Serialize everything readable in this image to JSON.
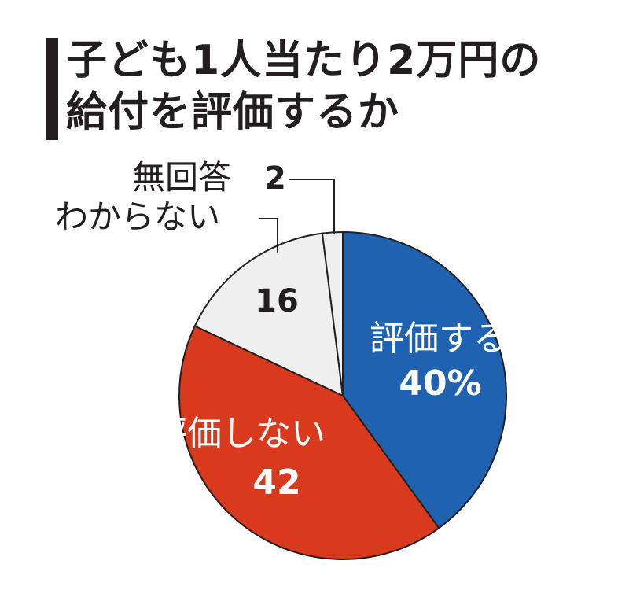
{
  "title_lines": [
    "子ども1人当たり2万円の",
    "給付を評価するか"
  ],
  "chart_data": {
    "type": "pie",
    "slices": [
      {
        "label": "評価する",
        "value": 40,
        "value_text": "40%",
        "color": "#1f63b0"
      },
      {
        "label": "評価しない",
        "value": 42,
        "value_text": "42",
        "color": "#d93a1e"
      },
      {
        "label": "わからない",
        "value": 16,
        "value_text": "16",
        "color": "#efefef"
      },
      {
        "label": "無回答",
        "value": 2,
        "value_text": "2",
        "color": "#efefef"
      }
    ]
  }
}
